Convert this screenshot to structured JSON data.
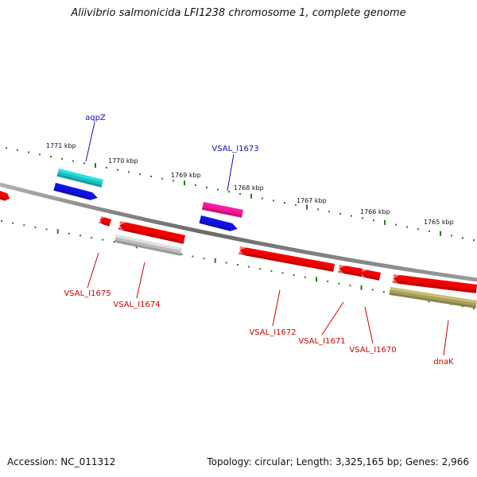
{
  "title": "Aliivibrio salmonicida LFI1238 chromosome 1, complete genome",
  "footer": {
    "accession": "Accession: NC_011312",
    "summary": "Topology: circular; Length: 3,325,165 bp; Genes: 2,966"
  },
  "colors": {
    "backbone": "#777777",
    "tick": "#2a7a1a",
    "label_forward": "#1010c0",
    "label_reverse": "#d00000",
    "red": "#ee0000",
    "blue": "#1010e0",
    "cyan": "#20c0c0",
    "magenta": "#f01890",
    "gray": "#bcbcbc",
    "olive": "#a8a060"
  },
  "scale_labels": [
    "1771 kbp",
    "1770 kbp",
    "1769 kbp",
    "1768 kbp",
    "1767 kbp",
    "1766 kbp",
    "1765 kbp"
  ],
  "gene_labels": {
    "forward": [
      "aqpZ",
      "VSAL_I1673"
    ],
    "reverse": [
      "VSAL_I1675",
      "VSAL_I1674",
      "VSAL_I1672",
      "VSAL_I1671",
      "VSAL_I1670",
      "dnaK"
    ]
  }
}
